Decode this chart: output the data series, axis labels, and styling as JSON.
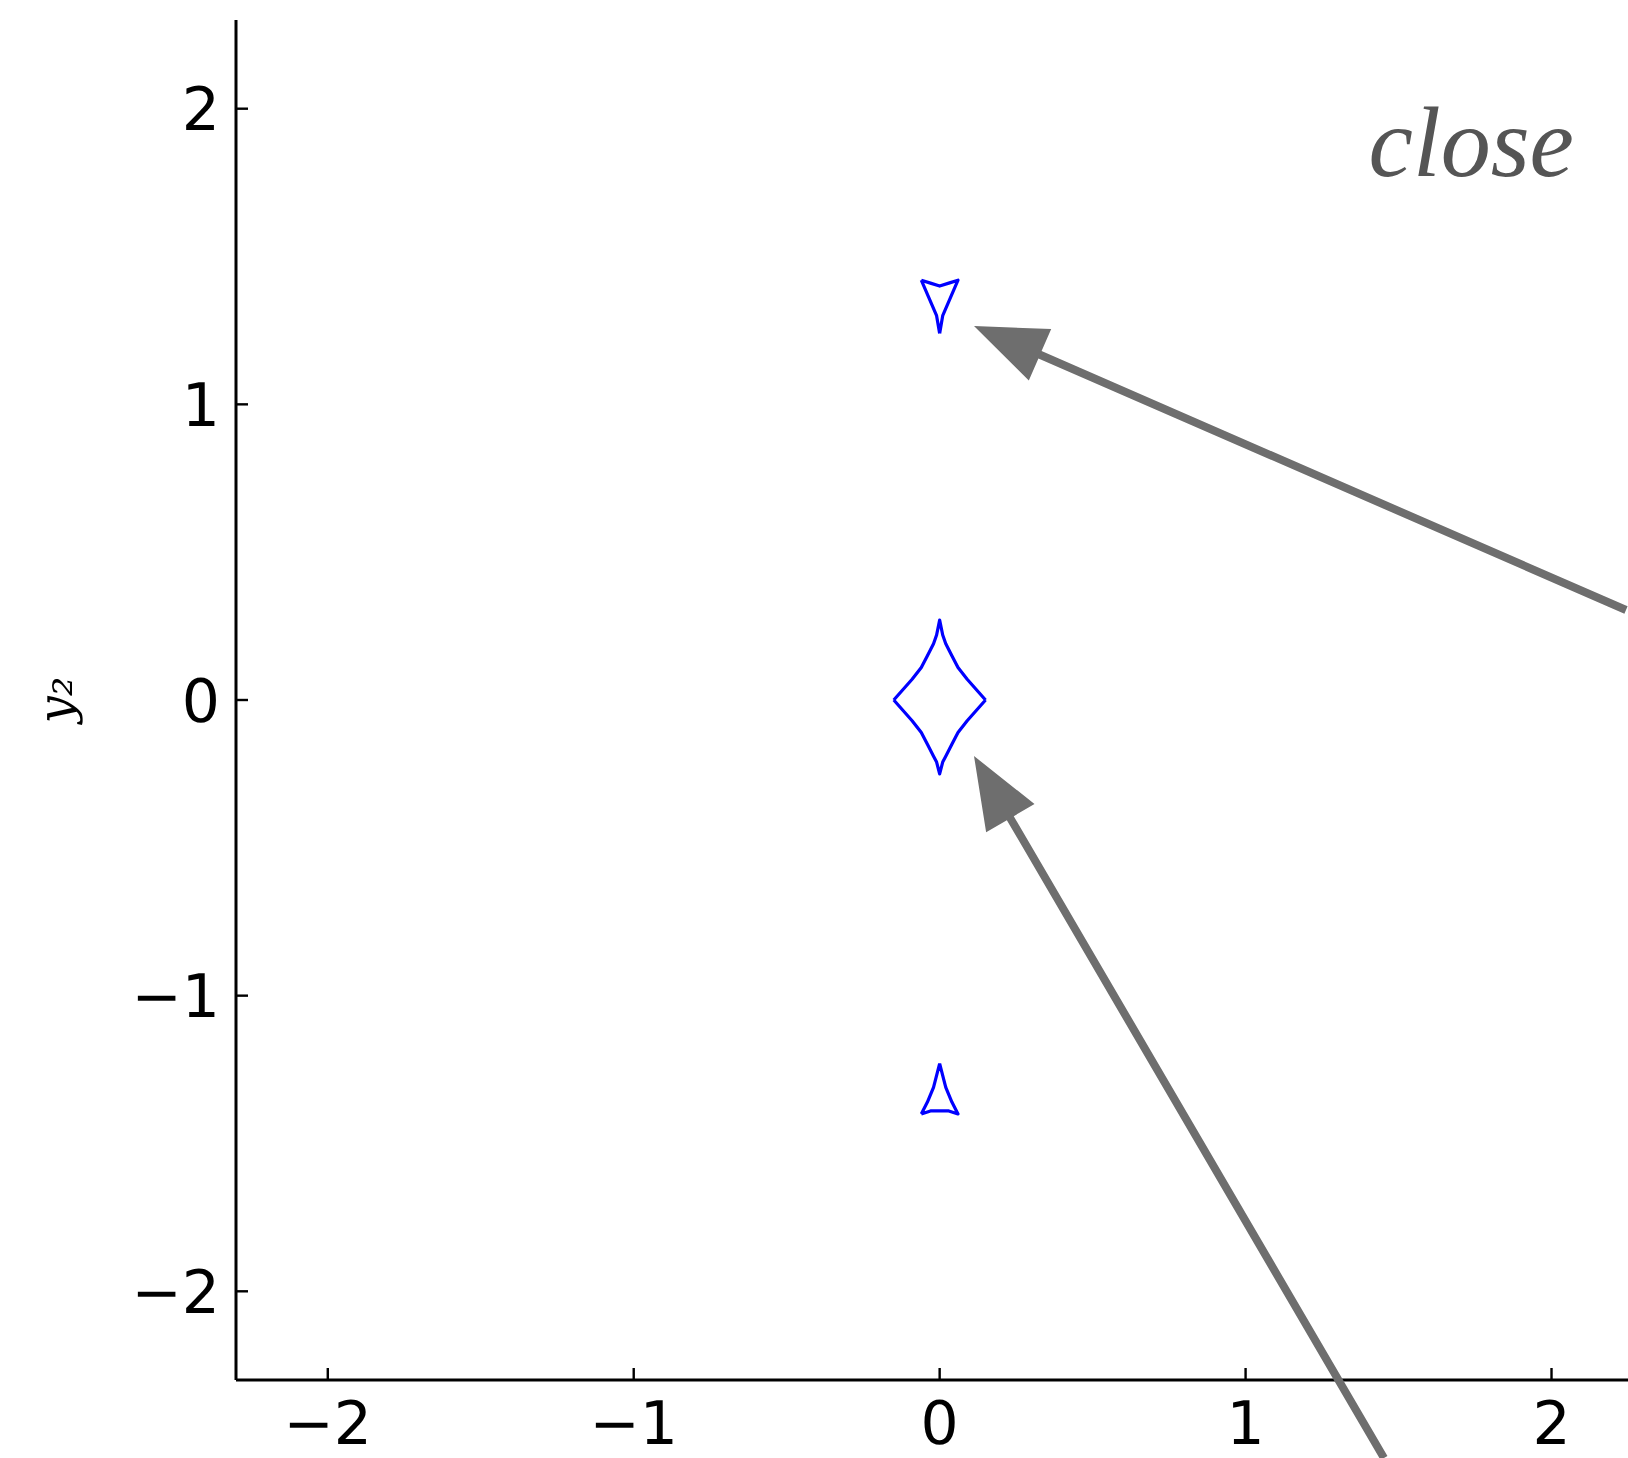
{
  "chart_data": {
    "type": "line",
    "ylabel": "y₂",
    "annotations": [
      "close"
    ],
    "xlim": [
      -2.3,
      2.25
    ],
    "ylim": [
      -2.3,
      2.3
    ],
    "xticks": [
      {
        "value": -2,
        "label": "−2"
      },
      {
        "value": -1,
        "label": "−1"
      },
      0,
      1,
      2
    ],
    "yticks": [
      {
        "value": -2,
        "label": "−2"
      },
      {
        "value": -1,
        "label": "−1"
      },
      0,
      1,
      2
    ],
    "marker": "none",
    "series": [
      {
        "color": "#0000ff",
        "x": [
          -0.06,
          -0.03,
          0,
          0.03,
          0.06,
          0.035,
          0.01,
          0,
          null,
          -0.06,
          -0.035,
          -0.01,
          0,
          null,
          -0.15,
          -0.09,
          -0.06,
          -0.04,
          -0.02,
          -0.01,
          0,
          0.01,
          0.02,
          0.04,
          0.06,
          0.09,
          0.15,
          null,
          -0.15,
          -0.09,
          -0.06,
          -0.04,
          -0.02,
          -0.01,
          0,
          0.01,
          0.02,
          0.04,
          0.06,
          0.09,
          0.15,
          null,
          -0.06,
          -0.03,
          0,
          0.03,
          0.06,
          0.04,
          0.02,
          0,
          null,
          -0.06,
          -0.04,
          -0.02,
          0
        ],
        "values": [
          1.42,
          1.41,
          1.4,
          1.41,
          1.42,
          1.36,
          1.3,
          1.24,
          null,
          1.42,
          1.36,
          1.3,
          1.24,
          null,
          0,
          0.07,
          0.11,
          0.15,
          0.19,
          0.22,
          0.27,
          0.22,
          0.19,
          0.15,
          0.11,
          0.07,
          0,
          null,
          0,
          -0.07,
          -0.11,
          -0.15,
          -0.19,
          -0.21,
          -0.25,
          -0.21,
          -0.19,
          -0.15,
          -0.11,
          -0.07,
          0,
          null,
          -1.4,
          -1.39,
          -1.39,
          -1.39,
          -1.4,
          -1.36,
          -1.31,
          -1.23,
          null,
          -1.4,
          -1.36,
          -1.31,
          -1.23
        ]
      }
    ]
  }
}
